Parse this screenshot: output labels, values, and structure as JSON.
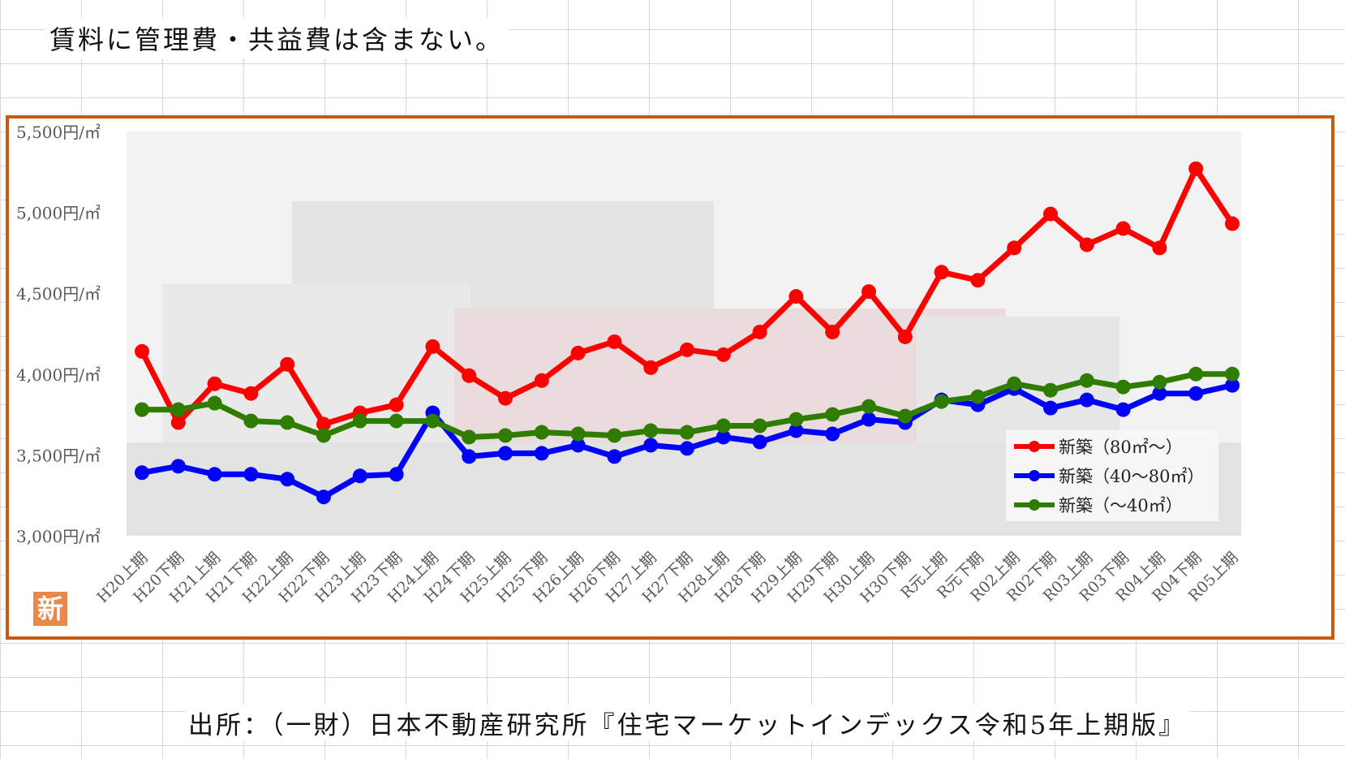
{
  "note": "賃料に管理費・共益費は含まない。",
  "source": "出所：（一財）日本不動産研究所『住宅マーケットインデックス令和5年上期版』",
  "badge": "新",
  "colors": {
    "red": "#ff0000",
    "blue": "#0000ff",
    "green": "#2e7d00",
    "frame": "#c55a11"
  },
  "chart_data": {
    "type": "line",
    "title": "",
    "xlabel": "",
    "ylabel": "",
    "ylim": [
      3000,
      5500
    ],
    "y_ticks": [
      {
        "value": 3000,
        "label": "3,000円/㎡"
      },
      {
        "value": 3500,
        "label": "3,500円/㎡"
      },
      {
        "value": 4000,
        "label": "4,000円/㎡"
      },
      {
        "value": 4500,
        "label": "4,500円/㎡"
      },
      {
        "value": 5000,
        "label": "5,000円/㎡"
      },
      {
        "value": 5500,
        "label": "5,500円/㎡"
      }
    ],
    "legend_position": "bottom-right",
    "categories": [
      "H20上期",
      "H20下期",
      "H21上期",
      "H21下期",
      "H22上期",
      "H22下期",
      "H23上期",
      "H23下期",
      "H24上期",
      "H24下期",
      "H25上期",
      "H25下期",
      "H26上期",
      "H26下期",
      "H27上期",
      "H27下期",
      "H28上期",
      "H28下期",
      "H29上期",
      "H29下期",
      "H30上期",
      "H30下期",
      "R元上期",
      "R元下期",
      "R02上期",
      "R02下期",
      "R03上期",
      "R03下期",
      "R04上期",
      "R04下期",
      "R05上期"
    ],
    "series": [
      {
        "name": "新築（80㎡～）",
        "color": "#ff0000",
        "values": [
          4140,
          3700,
          3940,
          3880,
          4060,
          3690,
          3760,
          3810,
          4170,
          3990,
          3850,
          3960,
          4130,
          4200,
          4040,
          4150,
          4120,
          4260,
          4480,
          4260,
          4510,
          4230,
          4630,
          4580,
          4780,
          4990,
          4800,
          4900,
          4780,
          5270,
          4930
        ]
      },
      {
        "name": "新築（40～80㎡）",
        "color": "#0000ff",
        "values": [
          3390,
          3430,
          3380,
          3380,
          3350,
          3240,
          3370,
          3380,
          3760,
          3490,
          3510,
          3510,
          3560,
          3490,
          3560,
          3540,
          3610,
          3580,
          3650,
          3630,
          3720,
          3700,
          3840,
          3810,
          3910,
          3790,
          3840,
          3780,
          3880,
          3880,
          3930
        ]
      },
      {
        "name": "新築（～40㎡）",
        "color": "#2e7d00",
        "values": [
          3780,
          3780,
          3820,
          3710,
          3700,
          3620,
          3710,
          3710,
          3710,
          3610,
          3620,
          3640,
          3630,
          3620,
          3650,
          3640,
          3680,
          3680,
          3720,
          3750,
          3800,
          3740,
          3830,
          3860,
          3940,
          3900,
          3960,
          3920,
          3950,
          4000,
          4000
        ]
      }
    ]
  }
}
